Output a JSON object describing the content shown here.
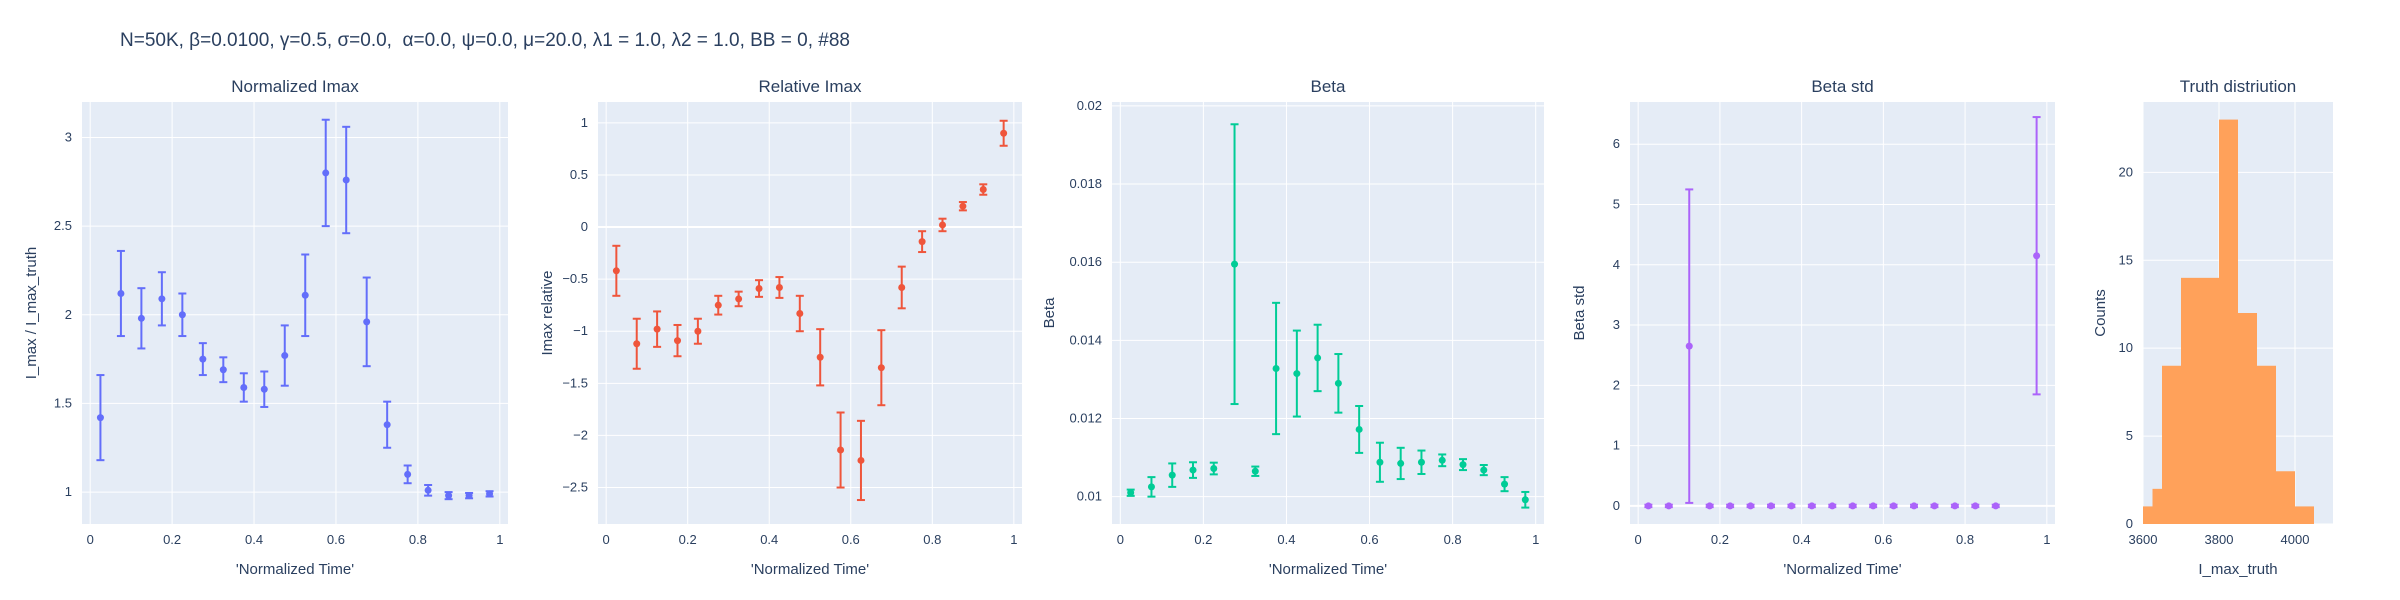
{
  "figure_title": "N=50K, β=0.0100, γ=0.5, σ=0.0,  α=0.0, ψ=0.0, μ=20.0, λ1 = 1.0, λ2 = 1.0, BB = 0, #88",
  "chart_data": [
    {
      "type": "scatter",
      "title": "Normalized Imax",
      "xlabel": "'Normalized Time'",
      "ylabel": "I_max / I_max_truth",
      "color": "#636efa",
      "xlim": [
        -0.02,
        1.02
      ],
      "ylim": [
        0.82,
        3.2
      ],
      "xticks": [
        0,
        0.2,
        0.4,
        0.6,
        0.8,
        1
      ],
      "xtick_labels": [
        "0",
        "0.2",
        "0.4",
        "0.6",
        "0.8",
        "1"
      ],
      "yticks": [
        1,
        1.5,
        2,
        2.5,
        3
      ],
      "ytick_labels": [
        "1",
        "1.5",
        "2",
        "2.5",
        "3"
      ],
      "series": [
        {
          "x": [
            0.025,
            0.075,
            0.125,
            0.175,
            0.225,
            0.275,
            0.325,
            0.375,
            0.425,
            0.475,
            0.525,
            0.575,
            0.625,
            0.675,
            0.725,
            0.775,
            0.825,
            0.875,
            0.925,
            0.975
          ],
          "y": [
            1.42,
            2.12,
            1.98,
            2.09,
            2.0,
            1.75,
            1.69,
            1.59,
            1.58,
            1.77,
            2.11,
            2.8,
            2.76,
            1.96,
            1.38,
            1.1,
            1.01,
            0.98,
            0.98,
            0.99
          ],
          "err": [
            0.24,
            0.24,
            0.17,
            0.15,
            0.12,
            0.09,
            0.07,
            0.08,
            0.1,
            0.17,
            0.23,
            0.3,
            0.3,
            0.25,
            0.13,
            0.05,
            0.03,
            0.02,
            0.015,
            0.015
          ]
        }
      ]
    },
    {
      "type": "scatter",
      "title": "Relative Imax",
      "xlabel": "'Normalized Time'",
      "ylabel": "Imax relative",
      "color": "#ef553b",
      "xlim": [
        -0.02,
        1.02
      ],
      "ylim": [
        -2.85,
        1.2
      ],
      "xticks": [
        0,
        0.2,
        0.4,
        0.6,
        0.8,
        1
      ],
      "xtick_labels": [
        "0",
        "0.2",
        "0.4",
        "0.6",
        "0.8",
        "1"
      ],
      "yticks": [
        -2.5,
        -2,
        -1.5,
        -1,
        -0.5,
        0,
        0.5,
        1
      ],
      "ytick_labels": [
        "−2.5",
        "−2",
        "−1.5",
        "−1",
        "−0.5",
        "0",
        "0.5",
        "1"
      ],
      "zeroline": 0,
      "series": [
        {
          "x": [
            0.025,
            0.075,
            0.125,
            0.175,
            0.225,
            0.275,
            0.325,
            0.375,
            0.425,
            0.475,
            0.525,
            0.575,
            0.625,
            0.675,
            0.725,
            0.775,
            0.825,
            0.875,
            0.925,
            0.975
          ],
          "y": [
            -0.42,
            -1.12,
            -0.98,
            -1.09,
            -1.0,
            -0.75,
            -0.69,
            -0.59,
            -0.58,
            -0.83,
            -1.25,
            -2.14,
            -2.24,
            -1.35,
            -0.58,
            -0.14,
            0.02,
            0.2,
            0.36,
            0.9
          ],
          "err": [
            0.24,
            0.24,
            0.17,
            0.15,
            0.12,
            0.09,
            0.07,
            0.08,
            0.1,
            0.17,
            0.27,
            0.36,
            0.38,
            0.36,
            0.2,
            0.1,
            0.06,
            0.04,
            0.05,
            0.12
          ]
        }
      ]
    },
    {
      "type": "scatter",
      "title": "Beta",
      "xlabel": "'Normalized Time'",
      "ylabel": "Beta",
      "color": "#00cc96",
      "xlim": [
        -0.02,
        1.02
      ],
      "ylim": [
        0.0093,
        0.0201
      ],
      "xticks": [
        0,
        0.2,
        0.4,
        0.6,
        0.8,
        1
      ],
      "xtick_labels": [
        "0",
        "0.2",
        "0.4",
        "0.6",
        "0.8",
        "1"
      ],
      "yticks": [
        0.01,
        0.012,
        0.014,
        0.016,
        0.018,
        0.02
      ],
      "ytick_labels": [
        "0.01",
        "0.012",
        "0.014",
        "0.016",
        "0.018",
        "0.02"
      ],
      "series": [
        {
          "x": [
            0.025,
            0.075,
            0.125,
            0.175,
            0.225,
            0.275,
            0.325,
            0.375,
            0.425,
            0.475,
            0.525,
            0.575,
            0.625,
            0.675,
            0.725,
            0.775,
            0.825,
            0.875,
            0.925,
            0.975
          ],
          "y": [
            0.0101,
            0.01025,
            0.01055,
            0.01068,
            0.01072,
            0.01595,
            0.01065,
            0.01328,
            0.01315,
            0.01355,
            0.0129,
            0.01172,
            0.01088,
            0.01085,
            0.01088,
            0.01093,
            0.01082,
            0.01068,
            0.01032,
            0.00992
          ],
          "err": [
            8e-05,
            0.00025,
            0.0003,
            0.0002,
            0.00015,
            0.00358,
            0.00012,
            0.00168,
            0.0011,
            0.00085,
            0.00075,
            0.0006,
            0.0005,
            0.0004,
            0.0003,
            0.00015,
            0.00014,
            0.00013,
            0.00018,
            0.0002
          ]
        }
      ]
    },
    {
      "type": "scatter",
      "title": "Beta std",
      "xlabel": "'Normalized Time'",
      "ylabel": "Beta std",
      "color": "#ab63fa",
      "xlim": [
        -0.02,
        1.02
      ],
      "ylim": [
        -0.3,
        6.7
      ],
      "xticks": [
        0,
        0.2,
        0.4,
        0.6,
        0.8,
        1
      ],
      "xtick_labels": [
        "0",
        "0.2",
        "0.4",
        "0.6",
        "0.8",
        "1"
      ],
      "yticks": [
        0,
        1,
        2,
        3,
        4,
        5,
        6
      ],
      "ytick_labels": [
        "0",
        "1",
        "2",
        "3",
        "4",
        "5",
        "6"
      ],
      "zeroline": 0,
      "series": [
        {
          "x": [
            0.025,
            0.075,
            0.125,
            0.175,
            0.225,
            0.275,
            0.325,
            0.375,
            0.425,
            0.475,
            0.525,
            0.575,
            0.625,
            0.675,
            0.725,
            0.775,
            0.825,
            0.875,
            0.975
          ],
          "y": [
            0.0,
            0.0,
            2.65,
            0.0,
            0.0,
            0.0,
            0.0,
            0.0,
            0.0,
            0.0,
            0.0,
            0.0,
            0.0,
            0.0,
            0.0,
            0.0,
            0.0,
            0.0,
            4.15
          ],
          "err": [
            0.02,
            0.02,
            2.6,
            0.02,
            0.02,
            0.02,
            0.02,
            0.02,
            0.02,
            0.02,
            0.02,
            0.02,
            0.02,
            0.02,
            0.02,
            0.02,
            0.02,
            0.02,
            2.3
          ]
        }
      ]
    },
    {
      "type": "bar",
      "title": "Truth distriution",
      "xlabel": "I_max_truth",
      "ylabel": "Counts",
      "color": "#ffa15a",
      "xlim": [
        3600,
        4100
      ],
      "ylim": [
        0,
        24
      ],
      "xticks": [
        3600,
        3800,
        4000
      ],
      "xtick_labels": [
        "3600",
        "3800",
        "4000"
      ],
      "yticks": [
        0,
        5,
        10,
        15,
        20
      ],
      "ytick_labels": [
        "0",
        "5",
        "10",
        "15",
        "20"
      ],
      "bin_edges": [
        3600,
        3625,
        3650,
        3700,
        3750,
        3800,
        3850,
        3900,
        3950,
        4000,
        4050,
        4100
      ],
      "values": [
        1,
        2,
        9,
        14,
        14,
        23,
        12,
        9,
        3,
        1,
        0
      ]
    }
  ]
}
